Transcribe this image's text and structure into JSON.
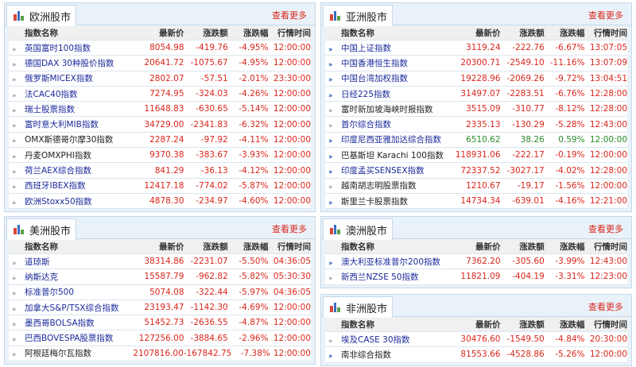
{
  "colors": {
    "down": "#d9261c",
    "up": "#2a8a2a",
    "link": "#1a2a9a",
    "arrow_blue": "#1a5ab8",
    "arrow_grey": "#999999"
  },
  "headers": [
    "指数名称",
    "最新价",
    "涨跌额",
    "涨跌幅",
    "行情时间"
  ],
  "more_label": "查看更多",
  "panels": [
    {
      "id": "europe",
      "title": "欧洲股市",
      "rows": [
        {
          "name": "英国富时100指数",
          "price": "8054.98",
          "change": "-419.76",
          "pct": "-4.95%",
          "time": "12:00:00",
          "link": true,
          "arrow": "grey",
          "dir": "down"
        },
        {
          "name": "德国DAX 30种股价指数",
          "price": "20641.72",
          "change": "-1075.67",
          "pct": "-4.95%",
          "time": "12:00:00",
          "link": true,
          "arrow": "grey",
          "dir": "down"
        },
        {
          "name": "俄罗斯MICEX指数",
          "price": "2802.07",
          "change": "-57.51",
          "pct": "-2.01%",
          "time": "23:30:00",
          "link": true,
          "arrow": "grey",
          "dir": "down"
        },
        {
          "name": "法CAC40指数",
          "price": "7274.95",
          "change": "-324.03",
          "pct": "-4.26%",
          "time": "12:00:00",
          "link": true,
          "arrow": "grey",
          "dir": "down"
        },
        {
          "name": "瑞士股票指数",
          "price": "11648.83",
          "change": "-630.65",
          "pct": "-5.14%",
          "time": "12:00:00",
          "link": true,
          "arrow": "grey",
          "dir": "down"
        },
        {
          "name": "富时意大利MIB指数",
          "price": "34729.00",
          "change": "-2341.83",
          "pct": "-6.32%",
          "time": "12:00:00",
          "link": true,
          "arrow": "grey",
          "dir": "down"
        },
        {
          "name": "OMX斯德哥尔摩30指数",
          "price": "2287.24",
          "change": "-97.92",
          "pct": "-4.11%",
          "time": "12:00:00",
          "link": false,
          "arrow": "grey",
          "dir": "down"
        },
        {
          "name": "丹麦OMXPHI指数",
          "price": "9370.38",
          "change": "-383.67",
          "pct": "-3.93%",
          "time": "12:00:00",
          "link": false,
          "arrow": "grey",
          "dir": "down"
        },
        {
          "name": "荷兰AEX综合指数",
          "price": "841.29",
          "change": "-36.13",
          "pct": "-4.12%",
          "time": "12:00:00",
          "link": true,
          "arrow": "grey",
          "dir": "down"
        },
        {
          "name": "西班牙IBEX指数",
          "price": "12417.18",
          "change": "-774.02",
          "pct": "-5.87%",
          "time": "12:00:00",
          "link": true,
          "arrow": "grey",
          "dir": "down"
        },
        {
          "name": "欧洲Stoxx50指数",
          "price": "4878.30",
          "change": "-234.97",
          "pct": "-4.60%",
          "time": "12:00:00",
          "link": true,
          "arrow": "grey",
          "dir": "down"
        }
      ]
    },
    {
      "id": "asia",
      "title": "亚洲股市",
      "rows": [
        {
          "name": "中国上证指数",
          "price": "3119.24",
          "change": "-222.76",
          "pct": "-6.67%",
          "time": "13:07:05",
          "link": true,
          "arrow": "blue",
          "dir": "down"
        },
        {
          "name": "中国香港恒生指数",
          "price": "20300.71",
          "change": "-2549.10",
          "pct": "-11.16%",
          "time": "13:07:09",
          "link": true,
          "arrow": "blue",
          "dir": "down"
        },
        {
          "name": "中国台湾加权指数",
          "price": "19228.96",
          "change": "-2069.26",
          "pct": "-9.72%",
          "time": "13:04:51",
          "link": true,
          "arrow": "blue",
          "dir": "down"
        },
        {
          "name": "日经225指数",
          "price": "31497.07",
          "change": "-2283.51",
          "pct": "-6.76%",
          "time": "12:28:00",
          "link": true,
          "arrow": "blue",
          "dir": "down"
        },
        {
          "name": "富时新加坡海峡时报指数",
          "price": "3515.09",
          "change": "-310.77",
          "pct": "-8.12%",
          "time": "12:28:00",
          "link": false,
          "arrow": "grey",
          "dir": "down"
        },
        {
          "name": "首尔综合指数",
          "price": "2335.13",
          "change": "-130.29",
          "pct": "-5.28%",
          "time": "12:43:00",
          "link": true,
          "arrow": "grey",
          "dir": "down"
        },
        {
          "name": "印度尼西亚雅加达综合指数",
          "price": "6510.62",
          "change": "38.26",
          "pct": "0.59%",
          "time": "12:00:00",
          "link": true,
          "arrow": "blue",
          "dir": "up"
        },
        {
          "name": "巴基斯坦 Karachi 100指数",
          "price": "118931.06",
          "change": "-222.17",
          "pct": "-0.19%",
          "time": "12:00:00",
          "link": false,
          "arrow": "blue",
          "dir": "down"
        },
        {
          "name": "印度孟买SENSEX指数",
          "price": "72337.52",
          "change": "-3027.17",
          "pct": "-4.02%",
          "time": "12:28:00",
          "link": true,
          "arrow": "blue",
          "dir": "down"
        },
        {
          "name": "越南胡志明股票指数",
          "price": "1210.67",
          "change": "-19.17",
          "pct": "-1.56%",
          "time": "12:00:00",
          "link": false,
          "arrow": "grey",
          "dir": "down"
        },
        {
          "name": "斯里兰卡股票指数",
          "price": "14734.34",
          "change": "-639.01",
          "pct": "-4.16%",
          "time": "12:21:00",
          "link": false,
          "arrow": "blue",
          "dir": "down"
        }
      ]
    },
    {
      "id": "americas",
      "title": "美洲股市",
      "rows": [
        {
          "name": "道琼斯",
          "price": "38314.86",
          "change": "-2231.07",
          "pct": "-5.50%",
          "time": "04:36:05",
          "link": true,
          "arrow": "grey",
          "dir": "down"
        },
        {
          "name": "纳斯达克",
          "price": "15587.79",
          "change": "-962.82",
          "pct": "-5.82%",
          "time": "05:30:30",
          "link": true,
          "arrow": "grey",
          "dir": "down"
        },
        {
          "name": "标准普尔500",
          "price": "5074.08",
          "change": "-322.44",
          "pct": "-5.97%",
          "time": "04:36:05",
          "link": true,
          "arrow": "grey",
          "dir": "down"
        },
        {
          "name": "加拿大S&P/TSX综合指数",
          "price": "23193.47",
          "change": "-1142.30",
          "pct": "-4.69%",
          "time": "12:00:00",
          "link": true,
          "arrow": "grey",
          "dir": "down"
        },
        {
          "name": "墨西哥BOLSA指数",
          "price": "51452.73",
          "change": "-2636.55",
          "pct": "-4.87%",
          "time": "12:00:00",
          "link": true,
          "arrow": "grey",
          "dir": "down"
        },
        {
          "name": "巴西BOVESPA股票指数",
          "price": "127256.00",
          "change": "-3884.65",
          "pct": "-2.96%",
          "time": "12:00:00",
          "link": true,
          "arrow": "grey",
          "dir": "down"
        },
        {
          "name": "阿根廷梅尔瓦指数",
          "price": "2107816.00",
          "change": "-167842.75",
          "pct": "-7.38%",
          "time": "12:00:00",
          "link": false,
          "arrow": "grey",
          "dir": "down"
        }
      ]
    },
    {
      "id": "oceania",
      "title": "澳洲股市",
      "rows": [
        {
          "name": "澳大利亚标准普尔200指数",
          "price": "7362.20",
          "change": "-305.60",
          "pct": "-3.99%",
          "time": "12:43:00",
          "link": true,
          "arrow": "blue",
          "dir": "down"
        },
        {
          "name": "新西兰NZSE 50指数",
          "price": "11821.09",
          "change": "-404.19",
          "pct": "-3.31%",
          "time": "12:23:00",
          "link": true,
          "arrow": "grey",
          "dir": "down"
        }
      ]
    },
    {
      "id": "africa",
      "title": "非洲股市",
      "rows": [
        {
          "name": "埃及CASE 30指数",
          "price": "30476.60",
          "change": "-1549.50",
          "pct": "-4.84%",
          "time": "20:30:00",
          "link": true,
          "arrow": "grey",
          "dir": "down"
        },
        {
          "name": "南非综合指数",
          "price": "81553.66",
          "change": "-4528.86",
          "pct": "-5.26%",
          "time": "12:00:00",
          "link": false,
          "arrow": "blue",
          "dir": "down"
        }
      ]
    }
  ]
}
